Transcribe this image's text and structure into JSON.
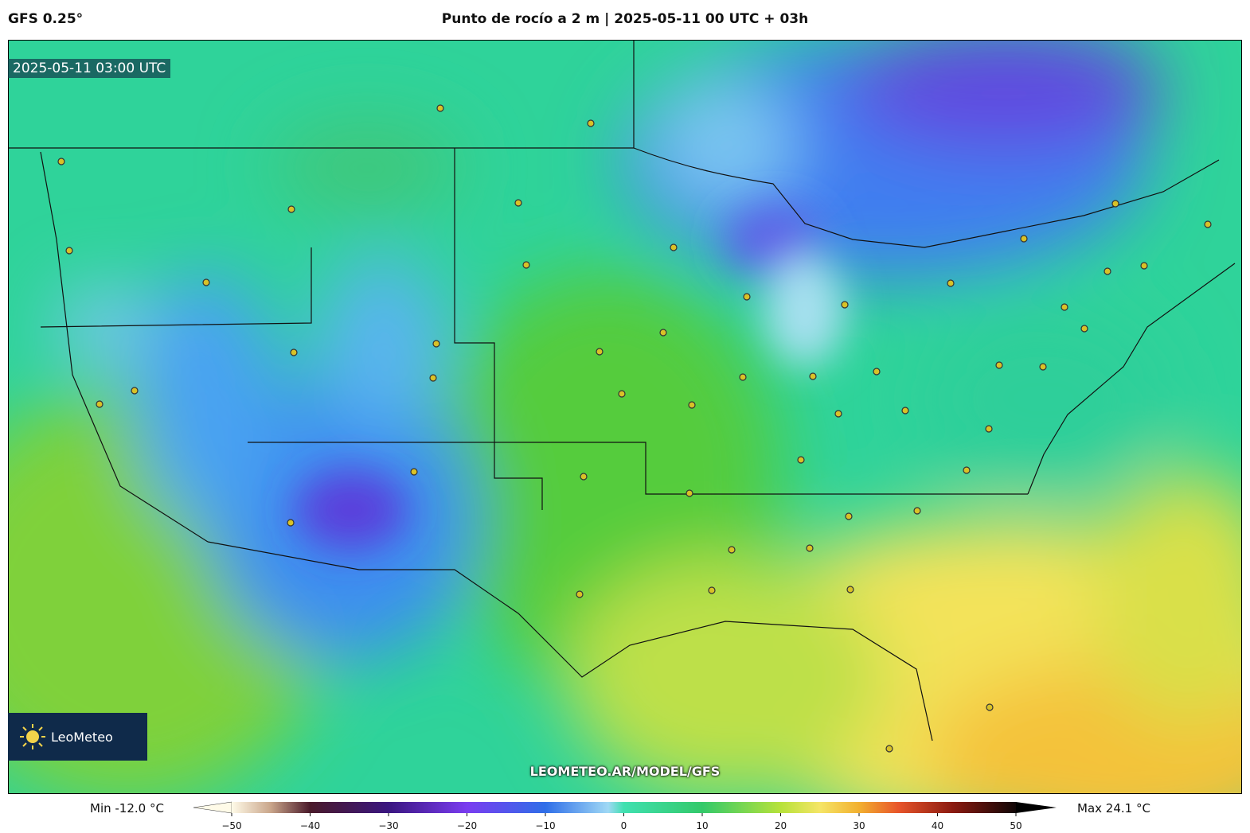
{
  "header": {
    "model": "GFS 0.25°",
    "title": "Punto de rocío a 2 m | 2025-05-11 00 UTC + 03h"
  },
  "map": {
    "timestamp": "2025-05-11 03:00 UTC",
    "watermark": "LEOMETEO.AR/MODEL/GFS",
    "logo": "LeoMeteo"
  },
  "colorbar": {
    "min_label": "Min -12.0 °C",
    "max_label": "Max 24.1 °C",
    "ticks": [
      {
        "value": -50,
        "label": "−50"
      },
      {
        "value": -40,
        "label": "−40"
      },
      {
        "value": -30,
        "label": "−30"
      },
      {
        "value": -20,
        "label": "−20"
      },
      {
        "value": -10,
        "label": "−10"
      },
      0,
      10,
      20,
      30,
      40,
      50
    ]
  }
}
